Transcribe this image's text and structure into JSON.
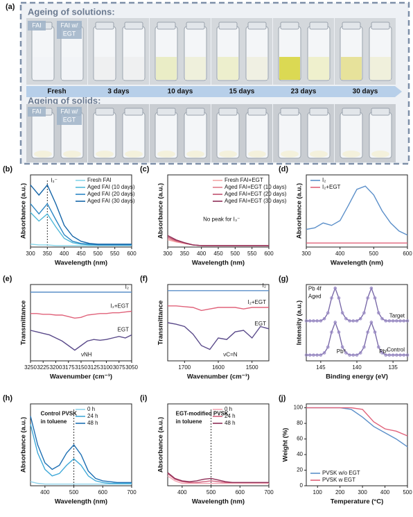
{
  "photo_panel": {
    "label": "(a)",
    "solutions_title": "Ageing of solutions:",
    "solids_title": "Ageing of solids:",
    "vial_labels": [
      "FAI",
      "FAI w/",
      "EGT"
    ],
    "stages": [
      "Fresh",
      "3 days",
      "10 days",
      "15 days",
      "23 days",
      "30 days"
    ]
  },
  "chart_data": [
    {
      "type": "line",
      "label": "(b)",
      "xlabel": "Wavelength (nm)",
      "ylabel": "Absorbance (a.u.)",
      "legend": "upper right",
      "x": [
        300,
        325,
        350,
        375,
        400,
        425,
        450,
        475,
        500,
        525,
        550,
        575,
        600
      ],
      "xlim": [
        300,
        600
      ],
      "xticks": [
        300,
        350,
        400,
        450,
        500,
        550,
        600
      ],
      "ylim": [
        0,
        1
      ],
      "vline": 350,
      "annotations": [
        "I₃⁻"
      ],
      "series": [
        {
          "name": "Fresh FAI",
          "color": "#86d6ea",
          "values": [
            0.04,
            0.03,
            0.03,
            0.02,
            0.02,
            0.02,
            0.02,
            0.02,
            0.02,
            0.02,
            0.02,
            0.02,
            0.02
          ]
        },
        {
          "name": "Aged FAI (10 days)",
          "color": "#4fb8d8",
          "values": [
            0.48,
            0.36,
            0.46,
            0.28,
            0.12,
            0.06,
            0.04,
            0.03,
            0.03,
            0.03,
            0.03,
            0.03,
            0.03
          ]
        },
        {
          "name": "Aged FAI (20 days)",
          "color": "#2a86c4",
          "values": [
            0.6,
            0.46,
            0.6,
            0.38,
            0.17,
            0.08,
            0.05,
            0.04,
            0.03,
            0.03,
            0.03,
            0.03,
            0.03
          ]
        },
        {
          "name": "Aged FAI (30 days)",
          "color": "#1565a8",
          "values": [
            0.86,
            0.72,
            0.86,
            0.6,
            0.3,
            0.15,
            0.08,
            0.05,
            0.04,
            0.04,
            0.04,
            0.04,
            0.04
          ]
        }
      ]
    },
    {
      "type": "line",
      "label": "(c)",
      "xlabel": "Wavelength (nm)",
      "ylabel": "Absorbance (a.u.)",
      "legend": "upper right",
      "x": [
        300,
        325,
        350,
        375,
        400,
        425,
        450,
        475,
        500,
        525,
        550,
        575,
        600
      ],
      "xlim": [
        300,
        600
      ],
      "xticks": [
        300,
        350,
        400,
        450,
        500,
        550,
        600
      ],
      "ylim": [
        0,
        1
      ],
      "annotations": [
        "No peak for I₃⁻"
      ],
      "series": [
        {
          "name": "Fresh FAI+EGT",
          "color": "#f4a6a6",
          "values": [
            0.1,
            0.07,
            0.05,
            0.03,
            0.02,
            0.02,
            0.02,
            0.02,
            0.02,
            0.02,
            0.02,
            0.02,
            0.02
          ]
        },
        {
          "name": "Aged FAI+EGT (10 days)",
          "color": "#e07b8a",
          "values": [
            0.12,
            0.08,
            0.05,
            0.03,
            0.02,
            0.02,
            0.02,
            0.02,
            0.02,
            0.02,
            0.02,
            0.02,
            0.02
          ]
        },
        {
          "name": "Aged FAI+EGT (20 days)",
          "color": "#c0506e",
          "values": [
            0.14,
            0.09,
            0.06,
            0.03,
            0.02,
            0.02,
            0.02,
            0.02,
            0.02,
            0.02,
            0.02,
            0.02,
            0.02
          ]
        },
        {
          "name": "Aged FAI+EGT (30 days)",
          "color": "#8e2d56",
          "values": [
            0.16,
            0.1,
            0.06,
            0.03,
            0.02,
            0.02,
            0.02,
            0.02,
            0.02,
            0.02,
            0.02,
            0.02,
            0.02
          ]
        }
      ]
    },
    {
      "type": "line",
      "label": "(d)",
      "xlabel": "Wavelength (nm)",
      "ylabel": "Absorbance (a.u.)",
      "legend": "upper left",
      "x": [
        300,
        325,
        350,
        375,
        400,
        425,
        450,
        475,
        500,
        525,
        550,
        575,
        600
      ],
      "xlim": [
        300,
        600
      ],
      "xticks": [
        300,
        400,
        500,
        600
      ],
      "ylim": [
        0,
        0.9
      ],
      "series": [
        {
          "name": "I₂",
          "color": "#5b8fc9",
          "values": [
            0.22,
            0.24,
            0.3,
            0.27,
            0.33,
            0.52,
            0.72,
            0.76,
            0.65,
            0.45,
            0.3,
            0.2,
            0.15
          ]
        },
        {
          "name": "I₂+EGT",
          "color": "#e0627a",
          "values": [
            0.05,
            0.05,
            0.05,
            0.05,
            0.05,
            0.05,
            0.05,
            0.05,
            0.05,
            0.05,
            0.05,
            0.05,
            0.05
          ]
        }
      ]
    },
    {
      "type": "line",
      "label": "(e)",
      "xlabel": "Wavenumber (cm⁻¹)",
      "ylabel": "Transmittance",
      "legend": "inline",
      "x": [
        3250,
        3237.5,
        3225,
        3212.5,
        3200,
        3187.5,
        3175,
        3162.5,
        3150,
        3137.5,
        3125,
        3112.5,
        3100,
        3087.5,
        3075,
        3062.5,
        3050
      ],
      "xlim": [
        3250,
        3050
      ],
      "xticks": [
        3250,
        3225,
        3200,
        3175,
        3150,
        3125,
        3100,
        3075,
        3050
      ],
      "ylim": [
        0,
        1
      ],
      "annotations": [
        "νNH"
      ],
      "series": [
        {
          "name": "I₂",
          "color": "#5b8fc9",
          "values": [
            0.9,
            0.9,
            0.9,
            0.9,
            0.9,
            0.9,
            0.9,
            0.9,
            0.9,
            0.9,
            0.9,
            0.9,
            0.9,
            0.9,
            0.9,
            0.9,
            0.9
          ]
        },
        {
          "name": "I₂+EGT",
          "color": "#e0627a",
          "values": [
            0.62,
            0.62,
            0.61,
            0.61,
            0.6,
            0.6,
            0.58,
            0.56,
            0.57,
            0.6,
            0.61,
            0.62,
            0.62,
            0.63,
            0.63,
            0.64,
            0.65
          ]
        },
        {
          "name": "EGT",
          "color": "#5a4a8a",
          "values": [
            0.4,
            0.38,
            0.36,
            0.34,
            0.3,
            0.26,
            0.2,
            0.14,
            0.2,
            0.26,
            0.28,
            0.27,
            0.28,
            0.3,
            0.32,
            0.3,
            0.34
          ]
        }
      ]
    },
    {
      "type": "line",
      "label": "(f)",
      "xlabel": "Wavenumber (cm⁻¹)",
      "ylabel": "Transmittance",
      "legend": "inline",
      "x": [
        1750,
        1725,
        1700,
        1675,
        1650,
        1625,
        1600,
        1575,
        1550,
        1525,
        1500,
        1475,
        1450
      ],
      "xlim": [
        1750,
        1450
      ],
      "xticks": [
        1700,
        1600,
        1500
      ],
      "ylim": [
        0,
        1
      ],
      "annotations": [
        "νC=N"
      ],
      "series": [
        {
          "name": "I₂",
          "color": "#5b8fc9",
          "values": [
            0.92,
            0.92,
            0.92,
            0.92,
            0.92,
            0.92,
            0.92,
            0.92,
            0.92,
            0.92,
            0.92,
            0.92,
            0.92
          ]
        },
        {
          "name": "I₂+EGT",
          "color": "#e0627a",
          "values": [
            0.72,
            0.72,
            0.71,
            0.7,
            0.66,
            0.68,
            0.7,
            0.7,
            0.7,
            0.68,
            0.7,
            0.7,
            0.7
          ]
        },
        {
          "name": "EGT",
          "color": "#5a4a8a",
          "values": [
            0.5,
            0.48,
            0.45,
            0.35,
            0.2,
            0.15,
            0.3,
            0.28,
            0.38,
            0.4,
            0.3,
            0.45,
            0.42
          ]
        }
      ]
    },
    {
      "type": "line",
      "label": "(g)",
      "xlabel": "Binding energy (eV)",
      "ylabel": "Intensity (a.u.)",
      "legend": "inline",
      "markers": true,
      "x": [
        147,
        146.5,
        146,
        145.5,
        145,
        144.5,
        144,
        143.5,
        143,
        142.5,
        142,
        141.5,
        141,
        140.5,
        140,
        139.5,
        139,
        138.5,
        138,
        137.5,
        137,
        136.5,
        136,
        135.5,
        135,
        134.5,
        134,
        133.5,
        133
      ],
      "xlim": [
        147,
        133
      ],
      "xticks": [
        145,
        140,
        135
      ],
      "ylim": [
        0,
        1.05
      ],
      "annotations": [
        "Pb 4f",
        "Aged",
        "Pb⁰",
        "Pb⁰"
      ],
      "series": [
        {
          "name": "Target",
          "color": "#7a6aa8",
          "values": [
            0.55,
            0.55,
            0.55,
            0.55,
            0.55,
            0.58,
            0.66,
            0.865,
            1.0,
            0.865,
            0.66,
            0.58,
            0.55,
            0.55,
            0.55,
            0.58,
            0.66,
            0.865,
            1.0,
            0.865,
            0.66,
            0.58,
            0.55,
            0.55,
            0.55,
            0.55,
            0.55,
            0.55,
            0.55
          ]
        },
        {
          "name": "Control",
          "color": "#7a6aa8",
          "values": [
            0.08,
            0.08,
            0.08,
            0.08,
            0.08,
            0.11,
            0.19,
            0.395,
            0.53,
            0.395,
            0.19,
            0.11,
            0.08,
            0.08,
            0.08,
            0.11,
            0.19,
            0.395,
            0.53,
            0.395,
            0.19,
            0.11,
            0.08,
            0.08,
            0.08,
            0.08,
            0.08,
            0.08,
            0.08
          ]
        }
      ]
    },
    {
      "type": "line",
      "label": "(h)",
      "xlabel": "Wavelength (nm)",
      "ylabel": "Absorbance (a.u.)",
      "legend": "upper right",
      "x": [
        350,
        375,
        400,
        425,
        450,
        475,
        500,
        525,
        550,
        575,
        600,
        625,
        650,
        675,
        700
      ],
      "xlim": [
        350,
        700
      ],
      "xticks": [
        400,
        500,
        600,
        700
      ],
      "ylim": [
        0,
        1
      ],
      "vline": 500,
      "annotations": [
        "Control PVSK",
        "in toluene"
      ],
      "series": [
        {
          "name": "0 h",
          "color": "#8fd3ea",
          "values": [
            0.05,
            0.03,
            0.02,
            0.02,
            0.02,
            0.02,
            0.02,
            0.02,
            0.02,
            0.02,
            0.02,
            0.02,
            0.02,
            0.02,
            0.02
          ]
        },
        {
          "name": "24 h",
          "color": "#3fa9d8",
          "values": [
            0.75,
            0.4,
            0.2,
            0.12,
            0.15,
            0.25,
            0.33,
            0.25,
            0.12,
            0.06,
            0.04,
            0.03,
            0.03,
            0.03,
            0.03
          ]
        },
        {
          "name": "48 h",
          "color": "#1d6fb3",
          "values": [
            0.85,
            0.5,
            0.28,
            0.2,
            0.25,
            0.4,
            0.5,
            0.38,
            0.18,
            0.09,
            0.06,
            0.05,
            0.04,
            0.04,
            0.04
          ]
        }
      ]
    },
    {
      "type": "line",
      "label": "(i)",
      "xlabel": "Wavelength (nm)",
      "ylabel": "Absorbance (a.u.)",
      "legend": "upper right",
      "x": [
        350,
        375,
        400,
        425,
        450,
        475,
        500,
        525,
        550,
        575,
        600,
        625,
        650,
        675,
        700
      ],
      "xlim": [
        350,
        700
      ],
      "xticks": [
        400,
        500,
        600,
        700
      ],
      "ylim": [
        0,
        1
      ],
      "vline": 500,
      "annotations": [
        "EGT-modified PVSK",
        "in toluene"
      ],
      "series": [
        {
          "name": "0 h",
          "color": "#f4a6b4",
          "values": [
            0.12,
            0.06,
            0.03,
            0.03,
            0.03,
            0.03,
            0.03,
            0.03,
            0.03,
            0.03,
            0.03,
            0.03,
            0.03,
            0.03,
            0.03
          ]
        },
        {
          "name": "24 h",
          "color": "#d0607e",
          "values": [
            0.15,
            0.08,
            0.05,
            0.04,
            0.04,
            0.05,
            0.06,
            0.05,
            0.04,
            0.04,
            0.04,
            0.04,
            0.04,
            0.04,
            0.04
          ]
        },
        {
          "name": "48 h",
          "color": "#8e2d56",
          "values": [
            0.16,
            0.09,
            0.06,
            0.05,
            0.06,
            0.08,
            0.09,
            0.07,
            0.05,
            0.04,
            0.04,
            0.04,
            0.04,
            0.04,
            0.04
          ]
        }
      ]
    },
    {
      "type": "line",
      "label": "(j)",
      "xlabel": "Temperature (°C)",
      "ylabel": "Weight (%)",
      "legend": "lower left",
      "x": [
        50,
        100,
        150,
        200,
        250,
        300,
        350,
        400,
        450,
        500
      ],
      "xlim": [
        50,
        500
      ],
      "xticks": [
        100,
        200,
        300,
        400,
        500
      ],
      "ylim": [
        0,
        105
      ],
      "yticks": [
        0,
        20,
        40,
        60,
        80,
        100
      ],
      "series": [
        {
          "name": "PVSK w/o EGT",
          "color": "#5b8fc9",
          "values": [
            100,
            100,
            100,
            100,
            98,
            88,
            76,
            68,
            60,
            50
          ]
        },
        {
          "name": "PVSK w EGT",
          "color": "#e0627a",
          "values": [
            100,
            100,
            100,
            100,
            100,
            98,
            82,
            73,
            70,
            64
          ]
        }
      ]
    }
  ]
}
